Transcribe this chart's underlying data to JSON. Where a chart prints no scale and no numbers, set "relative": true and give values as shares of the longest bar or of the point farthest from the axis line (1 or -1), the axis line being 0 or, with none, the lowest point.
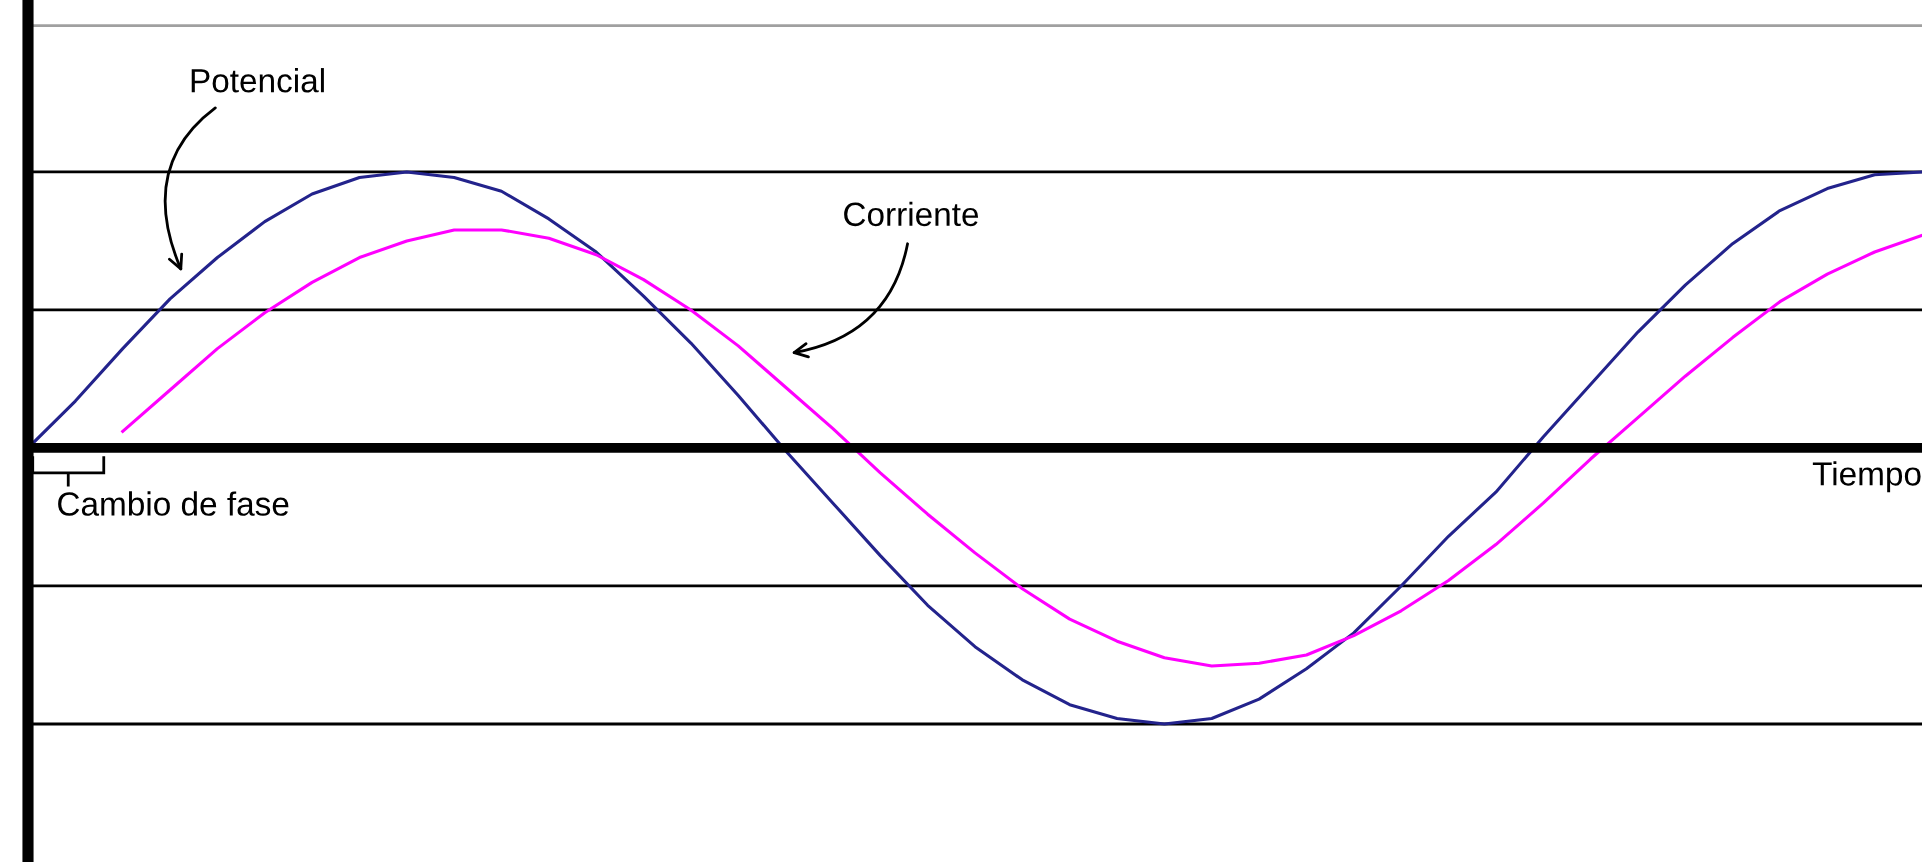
{
  "chart_data": {
    "type": "line",
    "relative": true,
    "xlabel": "Tiempo",
    "categories": [
      null,
      null,
      null,
      null,
      null,
      null,
      null,
      null,
      null,
      null,
      null,
      null,
      null,
      null,
      null,
      null,
      null,
      null,
      null,
      null,
      null,
      null,
      null,
      null,
      null,
      null,
      null,
      null,
      null,
      null,
      null,
      null,
      null,
      null,
      null,
      null,
      null,
      null,
      null,
      null,
      null
    ],
    "series": [
      {
        "color": "#23238c",
        "values": [
          0,
          0.17,
          0.36,
          0.54,
          0.69,
          0.82,
          0.92,
          0.98,
          1.0,
          0.98,
          0.93,
          0.83,
          0.71,
          0.55,
          0.38,
          0.19,
          -0.01,
          -0.2,
          -0.39,
          -0.57,
          -0.72,
          -0.84,
          -0.93,
          -0.98,
          -1.0,
          -0.98,
          -0.91,
          -0.8,
          -0.67,
          -0.5,
          -0.32,
          -0.16,
          0.04,
          0.23,
          0.42,
          0.59,
          0.74,
          0.86,
          0.94,
          0.99,
          1.0
        ]
      },
      {
        "color": "#ff00ff",
        "values": [
          null,
          null,
          0.06,
          0.21,
          0.36,
          0.49,
          0.6,
          0.69,
          0.75,
          0.79,
          0.79,
          0.76,
          0.7,
          0.61,
          0.5,
          0.37,
          0.22,
          0.07,
          -0.09,
          -0.24,
          -0.38,
          -0.51,
          -0.62,
          -0.7,
          -0.76,
          -0.79,
          -0.78,
          -0.75,
          -0.68,
          -0.59,
          -0.48,
          -0.35,
          -0.2,
          -0.04,
          0.11,
          0.26,
          0.4,
          0.53,
          0.63,
          0.71,
          0.77
        ]
      }
    ],
    "ref_lines": [
      {
        "axis": "y",
        "value": 1.0,
        "color": "#000000"
      },
      {
        "axis": "y",
        "value": 0.5,
        "color": "#000000"
      },
      {
        "axis": "y",
        "value": -0.5,
        "color": "#000000"
      },
      {
        "axis": "y",
        "value": -1.0,
        "color": "#000000"
      },
      {
        "axis": "y",
        "value": 1.53,
        "color": "#a0a0a0"
      }
    ],
    "annotations": [
      "Potencial",
      "Corriente",
      "Cambio de fase"
    ],
    "legend": false,
    "marker": "none",
    "line_style": "solid"
  }
}
